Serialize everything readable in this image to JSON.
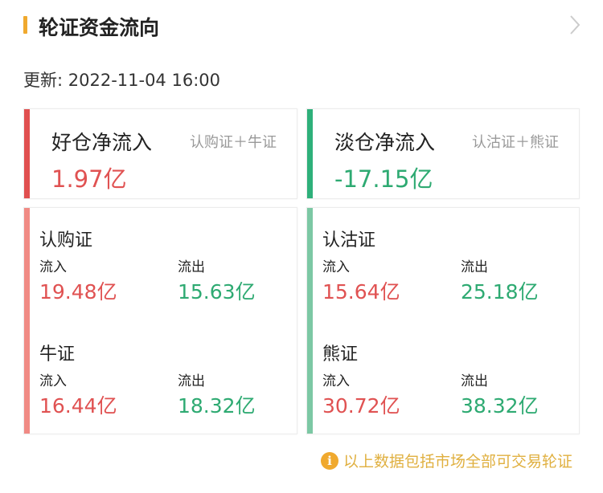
{
  "header": {
    "title": "轮证资金流向",
    "chevron": "chevron-right-icon"
  },
  "update": {
    "label": "更新: 2022-11-04 16:00"
  },
  "summary": [
    {
      "title": "好仓净流入",
      "sub": "认购证＋牛证",
      "value": "1.97亿",
      "color": "#e05252"
    },
    {
      "title": "淡仓净流入",
      "sub": "认沽证＋熊证",
      "value": "-17.15亿",
      "color": "#2eaa72"
    }
  ],
  "details": [
    {
      "groups": [
        {
          "name": "认购证",
          "in_label": "流入",
          "in": "19.48亿",
          "out_label": "流出",
          "out": "15.63亿"
        },
        {
          "name": "牛证",
          "in_label": "流入",
          "in": "16.44亿",
          "out_label": "流出",
          "out": "18.32亿"
        }
      ]
    },
    {
      "groups": [
        {
          "name": "认沽证",
          "in_label": "流入",
          "in": "15.64亿",
          "out_label": "流出",
          "out": "25.18亿"
        },
        {
          "name": "熊证",
          "in_label": "流入",
          "in": "30.72亿",
          "out_label": "流出",
          "out": "38.32亿"
        }
      ]
    }
  ],
  "footer": {
    "note": "以上数据包括市场全部可交易轮证",
    "icon": "info-icon"
  },
  "colors": {
    "accent": "#f0a92e",
    "inflow": "#e05252",
    "outflow": "#2eaa72",
    "bull_stripe": "#f08a84",
    "bear_stripe": "#7cc8a4"
  }
}
